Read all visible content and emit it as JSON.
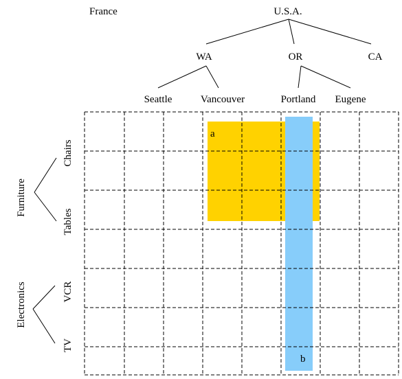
{
  "hierarchy": {
    "top": [
      "France",
      "U.S.A."
    ],
    "states": [
      "WA",
      "OR",
      "CA"
    ],
    "cities": [
      "Seattle",
      "Vancouver",
      "Portland",
      "Eugene"
    ]
  },
  "products": {
    "groups": [
      "Furniture",
      "Electronics"
    ],
    "items": [
      "Chairs",
      "Tables",
      "VCR",
      "TV"
    ]
  },
  "regions": {
    "a": {
      "label": "a",
      "color": "#ffd200"
    },
    "b": {
      "label": "b",
      "color": "#87cdfa"
    }
  }
}
